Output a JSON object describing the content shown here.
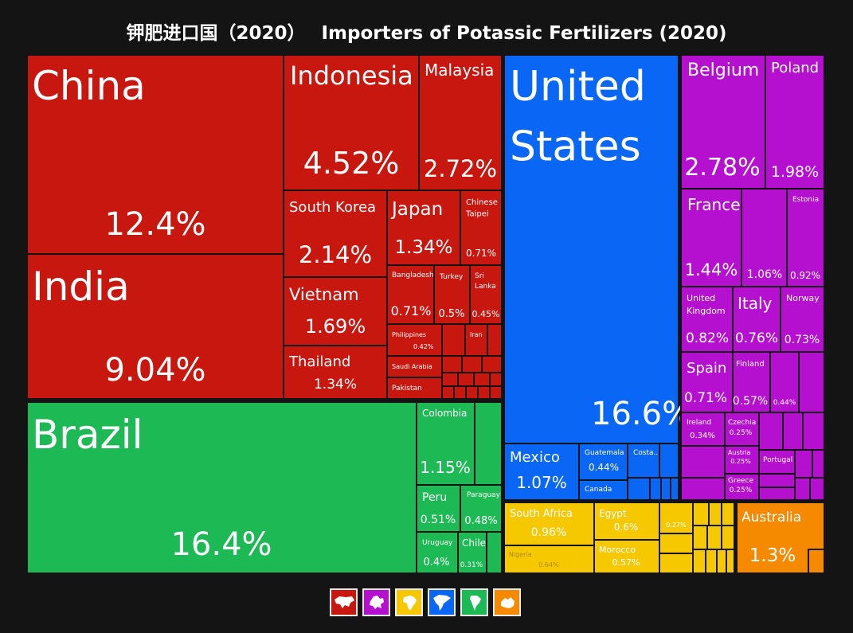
{
  "title_cn": "钾肥进口国（2020）",
  "title_en": "Importers of Potassic Fertilizers (2020)",
  "colors": {
    "asia": "#c8170f",
    "south_america": "#1db954",
    "north_america": "#0a66f5",
    "europe": "#b510d0",
    "africa": "#f5c800",
    "oceania": "#f58a00"
  },
  "chart_data": {
    "type": "treemap",
    "title": "Importers of Potassic Fertilizers (2020)",
    "unit": "% of world imports",
    "regions": [
      {
        "name": "Asia",
        "color": "#c8170f",
        "items": [
          {
            "name": "China",
            "value": "12.4%"
          },
          {
            "name": "India",
            "value": "9.04%"
          },
          {
            "name": "Indonesia",
            "value": "4.52%"
          },
          {
            "name": "Malaysia",
            "value": "2.72%"
          },
          {
            "name": "South Korea",
            "value": "2.14%"
          },
          {
            "name": "Vietnam",
            "value": "1.69%"
          },
          {
            "name": "Japan",
            "value": "1.34%"
          },
          {
            "name": "Thailand",
            "value": "1.34%"
          },
          {
            "name": "Chinese Taipei",
            "value": "0.71%"
          },
          {
            "name": "Bangladesh",
            "value": "0.71%"
          },
          {
            "name": "Turkey",
            "value": "0.5%"
          },
          {
            "name": "Sri Lanka",
            "value": "0.45%"
          },
          {
            "name": "Philippines",
            "value": "0.42%"
          },
          {
            "name": "Iran",
            "value": ""
          },
          {
            "name": "Saudi Arabia",
            "value": ""
          },
          {
            "name": "Pakistan",
            "value": ""
          }
        ]
      },
      {
        "name": "South America",
        "color": "#1db954",
        "items": [
          {
            "name": "Brazil",
            "value": "16.4%"
          },
          {
            "name": "Colombia",
            "value": "1.15%"
          },
          {
            "name": "Peru",
            "value": "0.51%"
          },
          {
            "name": "Paraguay",
            "value": "0.48%"
          },
          {
            "name": "Uruguay",
            "value": "0.4%"
          },
          {
            "name": "Chile",
            "value": "0.31%"
          }
        ]
      },
      {
        "name": "North America",
        "color": "#0a66f5",
        "items": [
          {
            "name": "United States",
            "value": "16.6%"
          },
          {
            "name": "Mexico",
            "value": "1.07%"
          },
          {
            "name": "Guatemala",
            "value": "0.44%"
          },
          {
            "name": "Canada",
            "value": ""
          },
          {
            "name": "Costa...",
            "value": ""
          }
        ]
      },
      {
        "name": "Europe",
        "color": "#b510d0",
        "items": [
          {
            "name": "Belgium",
            "value": "2.78%"
          },
          {
            "name": "Poland",
            "value": "1.98%"
          },
          {
            "name": "France",
            "value": "1.44%"
          },
          {
            "name": "Estonia",
            "value": "0.92%"
          },
          {
            "name": "",
            "value": "1.06%"
          },
          {
            "name": "United Kingdom",
            "value": "0.82%"
          },
          {
            "name": "Italy",
            "value": "0.76%"
          },
          {
            "name": "Norway",
            "value": "0.73%"
          },
          {
            "name": "Spain",
            "value": "0.71%"
          },
          {
            "name": "Finland",
            "value": "0.57%"
          },
          {
            "name": "",
            "value": "0.44%"
          },
          {
            "name": "Ireland",
            "value": "0.34%"
          },
          {
            "name": "Czechia",
            "value": "0.25%"
          },
          {
            "name": "Austria",
            "value": "0.25%"
          },
          {
            "name": "Greece",
            "value": "0.25%"
          },
          {
            "name": "Portugal",
            "value": ""
          }
        ]
      },
      {
        "name": "Africa",
        "color": "#f5c800",
        "items": [
          {
            "name": "South Africa",
            "value": "0.96%"
          },
          {
            "name": "Egypt",
            "value": "0.6%"
          },
          {
            "name": "",
            "value": "0.27%"
          },
          {
            "name": "Nigeria",
            "value": "0.64%"
          },
          {
            "name": "Morocco",
            "value": "0.57%"
          }
        ]
      },
      {
        "name": "Oceania",
        "color": "#f58a00",
        "items": [
          {
            "name": "Australia",
            "value": "1.3%"
          }
        ]
      }
    ],
    "legend": [
      {
        "region": "Asia",
        "icon": "asia-map-icon",
        "color": "#c8170f"
      },
      {
        "region": "Europe",
        "icon": "europe-map-icon",
        "color": "#b510d0"
      },
      {
        "region": "Africa",
        "icon": "africa-map-icon",
        "color": "#f5c800"
      },
      {
        "region": "North America",
        "icon": "north-america-map-icon",
        "color": "#0a66f5"
      },
      {
        "region": "South America",
        "icon": "south-america-map-icon",
        "color": "#1db954"
      },
      {
        "region": "Oceania",
        "icon": "oceania-map-icon",
        "color": "#f58a00"
      }
    ]
  }
}
